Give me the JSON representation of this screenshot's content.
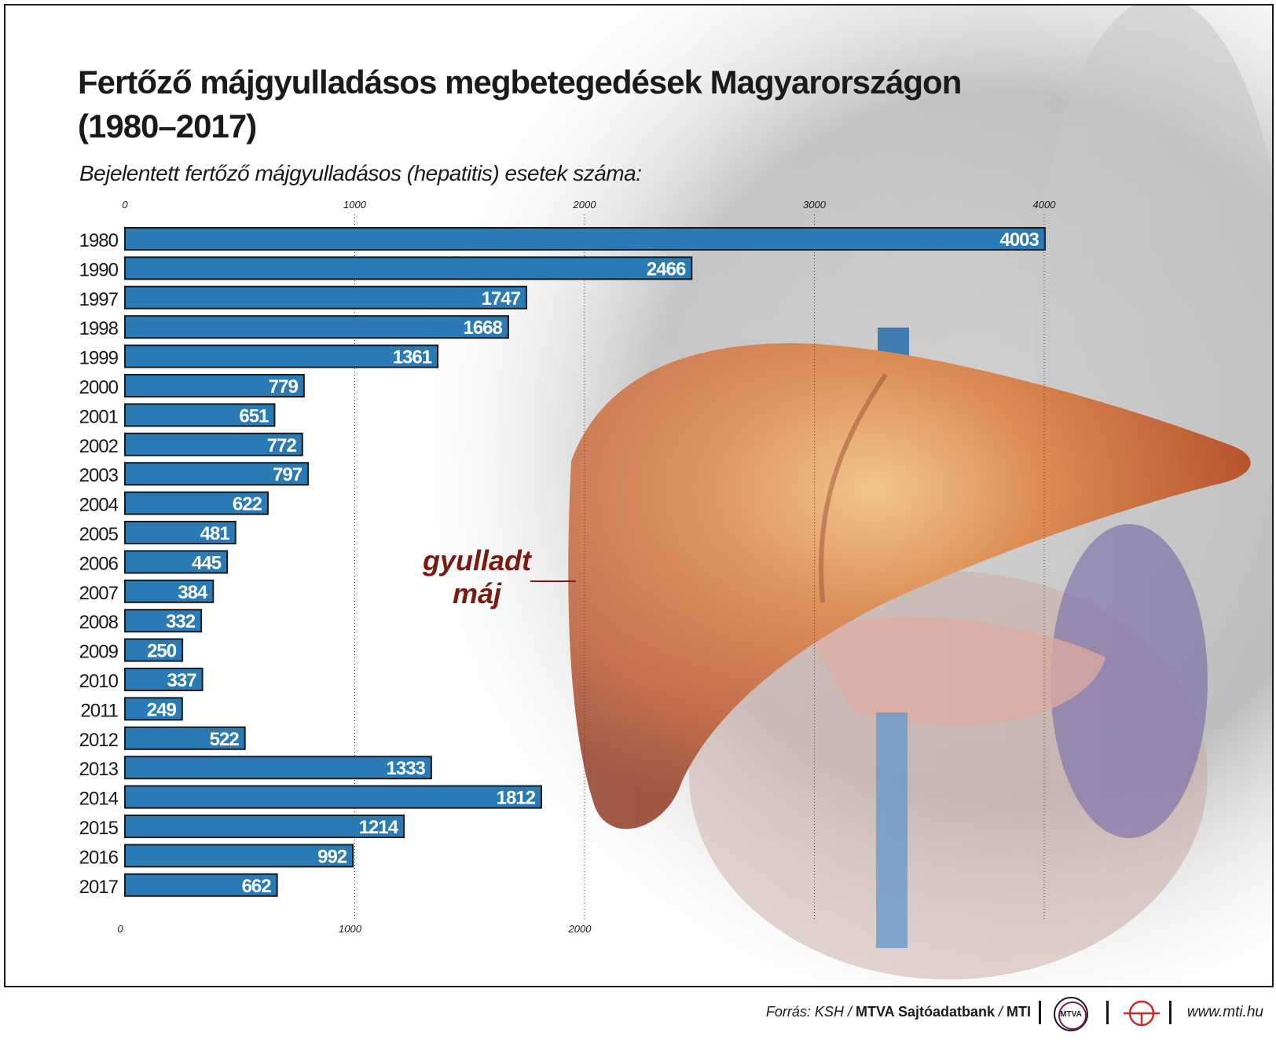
{
  "title_line1": "Fertőző májgyulladásos megbetegedések Magyarországon",
  "title_line2": "(1980–2017)",
  "subtitle": "Bejelentett fertőző májgyulladásos (hepatitis) esetek száma:",
  "annotation": {
    "line1": "gyulladt",
    "line2": "máj"
  },
  "footer": {
    "source_prefix": "Forrás: KSH / ",
    "source_bank": "MTVA Sajtóadatbank",
    "source_sep": " / ",
    "source_mti": "MTI",
    "logo_text": "MTVA",
    "website": "www.mti.hu"
  },
  "colors": {
    "bar": "#2a7ab5",
    "bar_border": "#1a1a1a",
    "annotation": "#7a1a10",
    "grid": "#333333"
  },
  "chart_data": {
    "type": "bar",
    "orientation": "horizontal",
    "categories": [
      "1980",
      "1990",
      "1997",
      "1998",
      "1999",
      "2000",
      "2001",
      "2002",
      "2003",
      "2004",
      "2005",
      "2006",
      "2007",
      "2008",
      "2009",
      "2010",
      "2011",
      "2012",
      "2013",
      "2014",
      "2015",
      "2016",
      "2017"
    ],
    "values": [
      4003,
      2466,
      1747,
      1668,
      1361,
      779,
      651,
      772,
      797,
      622,
      481,
      445,
      384,
      332,
      250,
      337,
      249,
      522,
      1333,
      1812,
      1214,
      992,
      662
    ],
    "top_ticks": [
      "0",
      "1000",
      "2000",
      "3000",
      "4000"
    ],
    "bottom_ticks": [
      "0",
      "1000",
      "2000"
    ],
    "xlim": [
      0,
      4000
    ],
    "grid": true,
    "data_labels": true
  }
}
